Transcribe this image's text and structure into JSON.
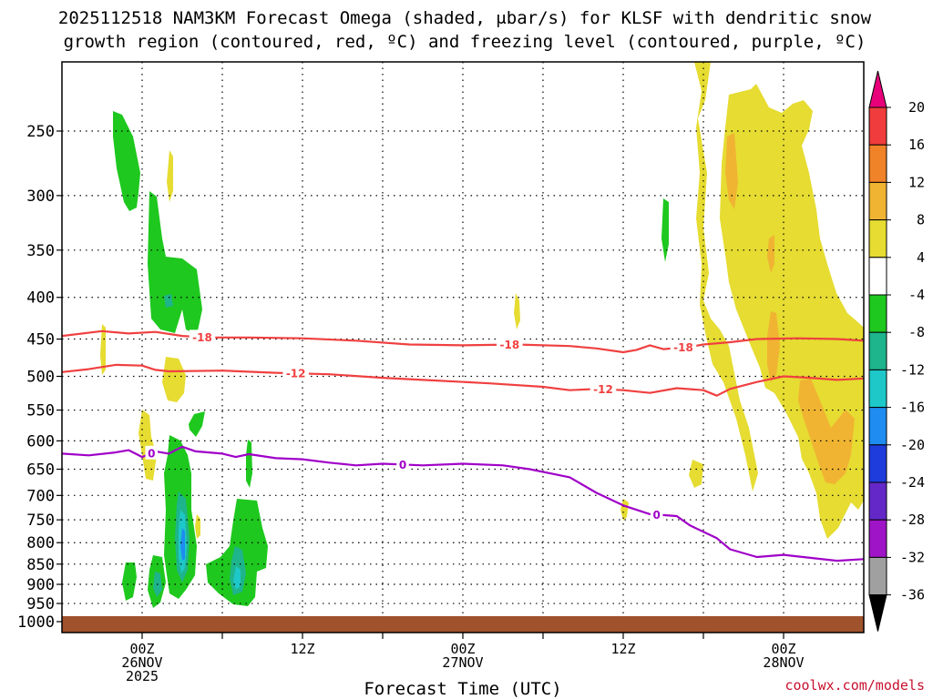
{
  "title": {
    "line1": "2025112518 NAM3KM Forecast Omega (shaded, μbar/s) for KLSF with dendritic snow",
    "line2": "growth region (contoured, red, ºC) and freezing level (contoured, purple, ºC)"
  },
  "credit": "coolwx.com/models",
  "colors": {
    "dgz_contour": "#f04040",
    "freezing_contour": "#a000c8",
    "ground": "#a0522d",
    "grid": "#000000"
  },
  "chart_data": {
    "type": "heatmap",
    "title": "2025112518 NAM3KM Forecast Omega (shaded, μbar/s) for KLSF with dendritic snow growth region (contoured, red, ºC) and freezing level (contoured, purple, ºC)",
    "xlabel": "Forecast Time (UTC)",
    "ylabel": "",
    "x_unit": "forecast hour from 2025-11-25 18Z",
    "xlim": [
      0,
      60
    ],
    "ylim_hPa": [
      1000,
      200
    ],
    "y_scale": "log-pressure",
    "grid": true,
    "x_ticks": [
      {
        "hour": 6,
        "labels": [
          "00Z",
          "26NOV",
          "2025"
        ]
      },
      {
        "hour": 18,
        "labels": [
          "12Z"
        ]
      },
      {
        "hour": 30,
        "labels": [
          "00Z",
          "27NOV"
        ]
      },
      {
        "hour": 42,
        "labels": [
          "12Z"
        ]
      },
      {
        "hour": 54,
        "labels": [
          "00Z",
          "28NOV"
        ]
      }
    ],
    "y_ticks": [
      {
        "p": 250,
        "label": "250"
      },
      {
        "p": 300,
        "label": "300"
      },
      {
        "p": 350,
        "label": "350"
      },
      {
        "p": 400,
        "label": "400"
      },
      {
        "p": 450,
        "label": "450"
      },
      {
        "p": 500,
        "label": "500"
      },
      {
        "p": 550,
        "label": "550"
      },
      {
        "p": 600,
        "label": "600"
      },
      {
        "p": 650,
        "label": "650"
      },
      {
        "p": 700,
        "label": "700"
      },
      {
        "p": 750,
        "label": "750"
      },
      {
        "p": 800,
        "label": "800"
      },
      {
        "p": 850,
        "label": "850"
      },
      {
        "p": 900,
        "label": "900"
      },
      {
        "p": 950,
        "label": "950"
      },
      {
        "p": 1000,
        "label": "1000"
      }
    ],
    "colorbar": {
      "unit": "μbar/s",
      "bins": [
        {
          "from": 20,
          "to": null,
          "color": "#e8007a"
        },
        {
          "from": 16,
          "to": 20,
          "color": "#f03c3c"
        },
        {
          "from": 12,
          "to": 16,
          "color": "#f08228"
        },
        {
          "from": 8,
          "to": 12,
          "color": "#f0b432"
        },
        {
          "from": 4,
          "to": 8,
          "color": "#e6dc32"
        },
        {
          "from": -4,
          "to": 4,
          "color": "#ffffff"
        },
        {
          "from": -8,
          "to": -4,
          "color": "#1ec81e"
        },
        {
          "from": -12,
          "to": -8,
          "color": "#1eb48c"
        },
        {
          "from": -16,
          "to": -12,
          "color": "#1ec8c8"
        },
        {
          "from": -20,
          "to": -16,
          "color": "#1e8cf0"
        },
        {
          "from": -24,
          "to": -20,
          "color": "#1e3cdc"
        },
        {
          "from": -28,
          "to": -24,
          "color": "#6428c8"
        },
        {
          "from": -32,
          "to": -28,
          "color": "#a014c8"
        },
        {
          "from": -36,
          "to": -32,
          "color": "#a0a0a0"
        },
        {
          "from": null,
          "to": -36,
          "color": "#000000"
        }
      ],
      "labels": [
        "20",
        "16",
        "12",
        "8",
        "4",
        "-4",
        "-8",
        "-12",
        "-16",
        "-20",
        "-24",
        "-28",
        "-32",
        "-36"
      ]
    },
    "contours": [
      {
        "name": "-18",
        "color": "#f04040",
        "labels": [
          {
            "hour": 10.5,
            "text": "-18"
          },
          {
            "hour": 33.5,
            "text": "-18"
          },
          {
            "hour": 46.5,
            "text": "-18"
          }
        ],
        "points": [
          [
            0,
            446
          ],
          [
            3,
            440
          ],
          [
            5,
            443
          ],
          [
            7,
            441
          ],
          [
            9,
            446
          ],
          [
            11,
            448
          ],
          [
            14,
            448
          ],
          [
            18,
            449
          ],
          [
            22,
            452
          ],
          [
            26,
            457
          ],
          [
            30,
            458
          ],
          [
            34,
            457
          ],
          [
            38,
            459
          ],
          [
            40,
            462
          ],
          [
            42,
            467
          ],
          [
            43,
            464
          ],
          [
            44,
            458
          ],
          [
            45,
            463
          ],
          [
            47,
            460
          ],
          [
            48,
            457
          ],
          [
            50,
            454
          ],
          [
            52,
            450
          ],
          [
            55,
            449
          ],
          [
            58,
            450
          ],
          [
            60,
            452
          ]
        ]
      },
      {
        "name": "-12",
        "color": "#f04040",
        "labels": [
          {
            "hour": 17.5,
            "text": "-12"
          },
          {
            "hour": 40.5,
            "text": "-12"
          }
        ],
        "points": [
          [
            0,
            494
          ],
          [
            2,
            490
          ],
          [
            4,
            484
          ],
          [
            6,
            485
          ],
          [
            7,
            491
          ],
          [
            8,
            493
          ],
          [
            12,
            492
          ],
          [
            16,
            495
          ],
          [
            20,
            497
          ],
          [
            24,
            502
          ],
          [
            28,
            506
          ],
          [
            32,
            510
          ],
          [
            36,
            515
          ],
          [
            38,
            520
          ],
          [
            40,
            518
          ],
          [
            42,
            520
          ],
          [
            44,
            524
          ],
          [
            46,
            517
          ],
          [
            48,
            520
          ],
          [
            49,
            528
          ],
          [
            50,
            518
          ],
          [
            52,
            508
          ],
          [
            54,
            500
          ],
          [
            56,
            502
          ],
          [
            58,
            505
          ],
          [
            60,
            503
          ]
        ]
      },
      {
        "name": "0",
        "color": "#a000c8",
        "labels": [
          {
            "hour": 6.7,
            "text": "0"
          },
          {
            "hour": 25.5,
            "text": "0"
          },
          {
            "hour": 44.5,
            "text": "0"
          }
        ],
        "points": [
          [
            0,
            622
          ],
          [
            2,
            625
          ],
          [
            4,
            620
          ],
          [
            5,
            616
          ],
          [
            6,
            628
          ],
          [
            7,
            618
          ],
          [
            8,
            622
          ],
          [
            9,
            610
          ],
          [
            10,
            618
          ],
          [
            12,
            622
          ],
          [
            13,
            628
          ],
          [
            14,
            623
          ],
          [
            16,
            630
          ],
          [
            18,
            632
          ],
          [
            20,
            638
          ],
          [
            22,
            643
          ],
          [
            24,
            640
          ],
          [
            27,
            643
          ],
          [
            30,
            640
          ],
          [
            33,
            643
          ],
          [
            35,
            650
          ],
          [
            37,
            660
          ],
          [
            38,
            665
          ],
          [
            40,
            695
          ],
          [
            42,
            720
          ],
          [
            44,
            738
          ],
          [
            46,
            742
          ],
          [
            47,
            762
          ],
          [
            49,
            790
          ],
          [
            50,
            815
          ],
          [
            52,
            833
          ],
          [
            54,
            828
          ],
          [
            56,
            835
          ],
          [
            58,
            842
          ],
          [
            60,
            838
          ]
        ]
      }
    ]
  }
}
